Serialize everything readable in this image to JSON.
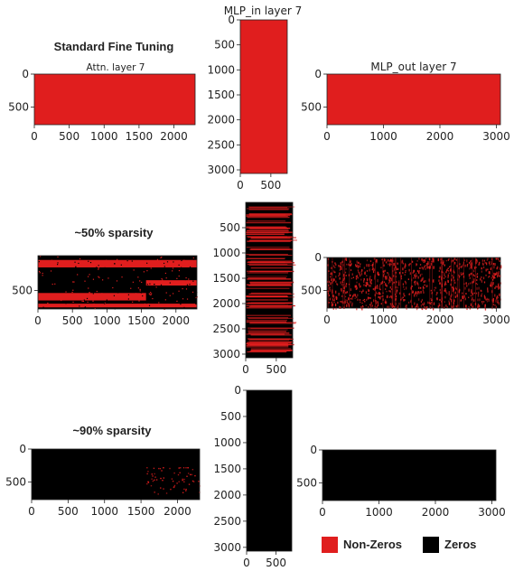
{
  "colors": {
    "nonzero": "#e01e1e",
    "zero": "#000000",
    "axis": "#222222",
    "tick_text": "#222222"
  },
  "legend": [
    {
      "label": "Non-Zeros",
      "color": "#e01e1e"
    },
    {
      "label": "Zeros",
      "color": "#000000"
    }
  ],
  "chart_data": [
    {
      "type": "heatmap",
      "row": "Standard Fine Tuning",
      "row_title": "Standard Fine Tuning",
      "title": "Attn. layer 7",
      "shape": [
        768,
        2304
      ],
      "nonzero_fraction": 1.0,
      "xticks": [
        0,
        500,
        1000,
        1500,
        2000
      ],
      "yticks": [
        0,
        500
      ]
    },
    {
      "type": "heatmap",
      "row": "Standard Fine Tuning",
      "title": "MLP_in layer 7",
      "shape": [
        3072,
        768
      ],
      "nonzero_fraction": 1.0,
      "xticks": [
        0,
        500
      ],
      "yticks": [
        0,
        500,
        1000,
        1500,
        2000,
        2500,
        3000
      ]
    },
    {
      "type": "heatmap",
      "row": "Standard Fine Tuning",
      "title": "MLP_out layer 7",
      "shape": [
        768,
        3072
      ],
      "nonzero_fraction": 1.0,
      "xticks": [
        0,
        1000,
        2000,
        3000
      ],
      "yticks": [
        0,
        500
      ]
    },
    {
      "type": "heatmap",
      "row": "~50% sparsity",
      "row_title": "~50% sparsity",
      "title": "",
      "shape": [
        768,
        2304
      ],
      "nonzero_fraction": 0.5,
      "xticks": [
        0,
        500,
        1000,
        1500,
        2000
      ],
      "yticks": [
        500
      ]
    },
    {
      "type": "heatmap",
      "row": "~50% sparsity",
      "title": "",
      "shape": [
        3072,
        768
      ],
      "nonzero_fraction": 0.5,
      "xticks": [
        0,
        500
      ],
      "yticks": [
        500,
        1000,
        1500,
        2000,
        2500,
        3000
      ]
    },
    {
      "type": "heatmap",
      "row": "~50% sparsity",
      "title": "",
      "shape": [
        768,
        3072
      ],
      "nonzero_fraction": 0.5,
      "xticks": [
        0,
        1000,
        2000,
        3000
      ],
      "yticks": [
        0,
        500
      ]
    },
    {
      "type": "heatmap",
      "row": "~90% sparsity",
      "row_title": "~90% sparsity",
      "title": "",
      "shape": [
        768,
        2304
      ],
      "nonzero_fraction": 0.1,
      "xticks": [
        0,
        500,
        1000,
        1500,
        2000
      ],
      "yticks": [
        0,
        500
      ]
    },
    {
      "type": "heatmap",
      "row": "~90% sparsity",
      "title": "",
      "shape": [
        3072,
        768
      ],
      "nonzero_fraction": 0.1,
      "xticks": [
        0,
        500
      ],
      "yticks": [
        0,
        500,
        1000,
        1500,
        2000,
        2500,
        3000
      ]
    },
    {
      "type": "heatmap",
      "row": "~90% sparsity",
      "title": "",
      "shape": [
        768,
        3072
      ],
      "nonzero_fraction": 0.1,
      "xticks": [
        0,
        1000,
        2000,
        3000
      ],
      "yticks": [
        0,
        500
      ]
    }
  ]
}
